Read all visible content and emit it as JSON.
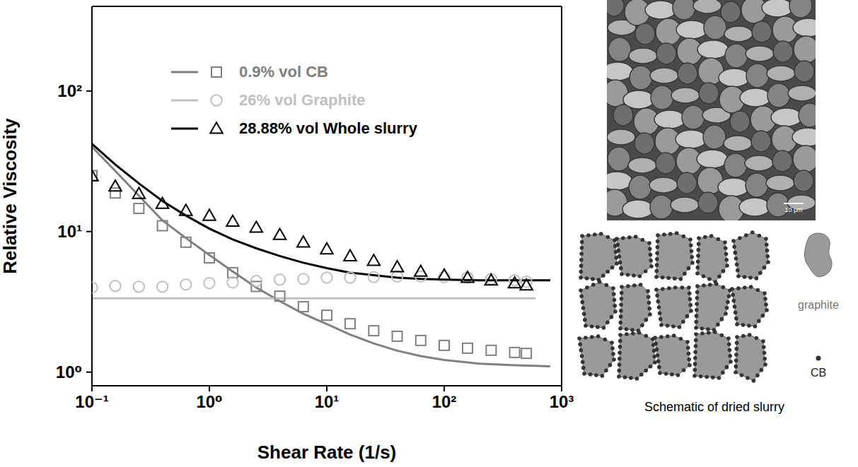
{
  "chart_data": {
    "type": "scatter",
    "x_label": "Shear Rate (1/s)",
    "y_label": "Relative Viscosity",
    "log": true,
    "grid": false,
    "legend": "top",
    "xlim": [
      0.1,
      1000
    ],
    "ylim": [
      0.8,
      400
    ],
    "xticks": [
      {
        "value": 0.1,
        "label": "10⁻¹"
      },
      {
        "value": 1,
        "label": "10⁰"
      },
      {
        "value": 10,
        "label": "10¹"
      },
      {
        "value": 100,
        "label": "10²"
      },
      {
        "value": 1000,
        "label": "10³"
      }
    ],
    "yticks": [
      {
        "value": 1,
        "label": "10⁰"
      },
      {
        "value": 10,
        "label": "10¹"
      },
      {
        "value": 100,
        "label": "10²"
      }
    ],
    "series": [
      {
        "name": "0.9% vol CB",
        "color": "#808080",
        "marker": "square",
        "line_style": "solid",
        "x": [
          0.1,
          0.158,
          0.251,
          0.398,
          0.631,
          1,
          1.58,
          2.51,
          3.98,
          6.31,
          10,
          15.8,
          25.1,
          39.8,
          63.1,
          100,
          158,
          251,
          398,
          501
        ],
        "values": [
          25,
          18.8,
          14.6,
          11,
          8.4,
          6.5,
          5.1,
          4.07,
          3.47,
          2.92,
          2.54,
          2.21,
          1.97,
          1.8,
          1.68,
          1.55,
          1.48,
          1.43,
          1.38,
          1.36
        ],
        "fit_x": [
          0.1,
          0.158,
          0.251,
          0.398,
          0.631,
          1,
          1.58,
          2.51,
          3.98,
          6.31,
          10,
          15.8,
          25.1,
          39.8,
          63.1,
          100,
          200,
          400,
          800
        ],
        "fit_values": [
          40,
          27,
          18,
          12,
          9,
          6.8,
          5.2,
          4,
          3.2,
          2.6,
          2.2,
          1.85,
          1.6,
          1.42,
          1.3,
          1.22,
          1.15,
          1.12,
          1.1
        ]
      },
      {
        "name": "26% vol Graphite",
        "color": "#c0c0c0",
        "marker": "circle",
        "line_style": "solid",
        "x": [
          0.1,
          0.158,
          0.251,
          0.398,
          0.631,
          1,
          1.58,
          2.51,
          3.98,
          6.31,
          10,
          15.8,
          25.1,
          39.8,
          63.1,
          100,
          158,
          251,
          398,
          501
        ],
        "values": [
          4,
          4.1,
          4.05,
          4.05,
          4.2,
          4.3,
          4.35,
          4.45,
          4.55,
          4.6,
          4.7,
          4.7,
          4.75,
          4.8,
          4.8,
          4.75,
          4.7,
          4.6,
          4.5,
          4.4
        ],
        "fit_x": [
          0.1,
          1,
          10,
          100,
          600
        ],
        "fit_values": [
          3.35,
          3.35,
          3.35,
          3.35,
          3.35
        ]
      },
      {
        "name": "28.88% vol Whole slurry",
        "color": "#000000",
        "marker": "triangle",
        "line_style": "solid",
        "x": [
          0.1,
          0.158,
          0.251,
          0.398,
          0.631,
          1,
          1.58,
          2.51,
          3.98,
          6.31,
          10,
          15.8,
          25.1,
          39.8,
          63.1,
          100,
          158,
          251,
          398,
          501
        ],
        "values": [
          24.8,
          21,
          18.6,
          15.8,
          14.1,
          13,
          11.8,
          10.7,
          9.5,
          8.4,
          7.5,
          6.7,
          6.2,
          5.6,
          5.2,
          4.9,
          4.7,
          4.5,
          4.3,
          4.15
        ],
        "fit_x": [
          0.1,
          0.158,
          0.251,
          0.398,
          0.631,
          1,
          1.58,
          2.51,
          3.98,
          6.31,
          10,
          15.8,
          25.1,
          39.8,
          63.1,
          100,
          200,
          400,
          800
        ],
        "fit_values": [
          42,
          30,
          22,
          16.5,
          13,
          10.5,
          8.8,
          7.6,
          6.7,
          6,
          5.5,
          5.1,
          4.9,
          4.7,
          4.6,
          4.55,
          4.5,
          4.5,
          4.5
        ]
      }
    ]
  },
  "sem_image": {
    "scale_bar": "10 μm"
  },
  "schematic": {
    "title": "Schematic of dried slurry",
    "labels": [
      "graphite",
      "CB"
    ]
  }
}
